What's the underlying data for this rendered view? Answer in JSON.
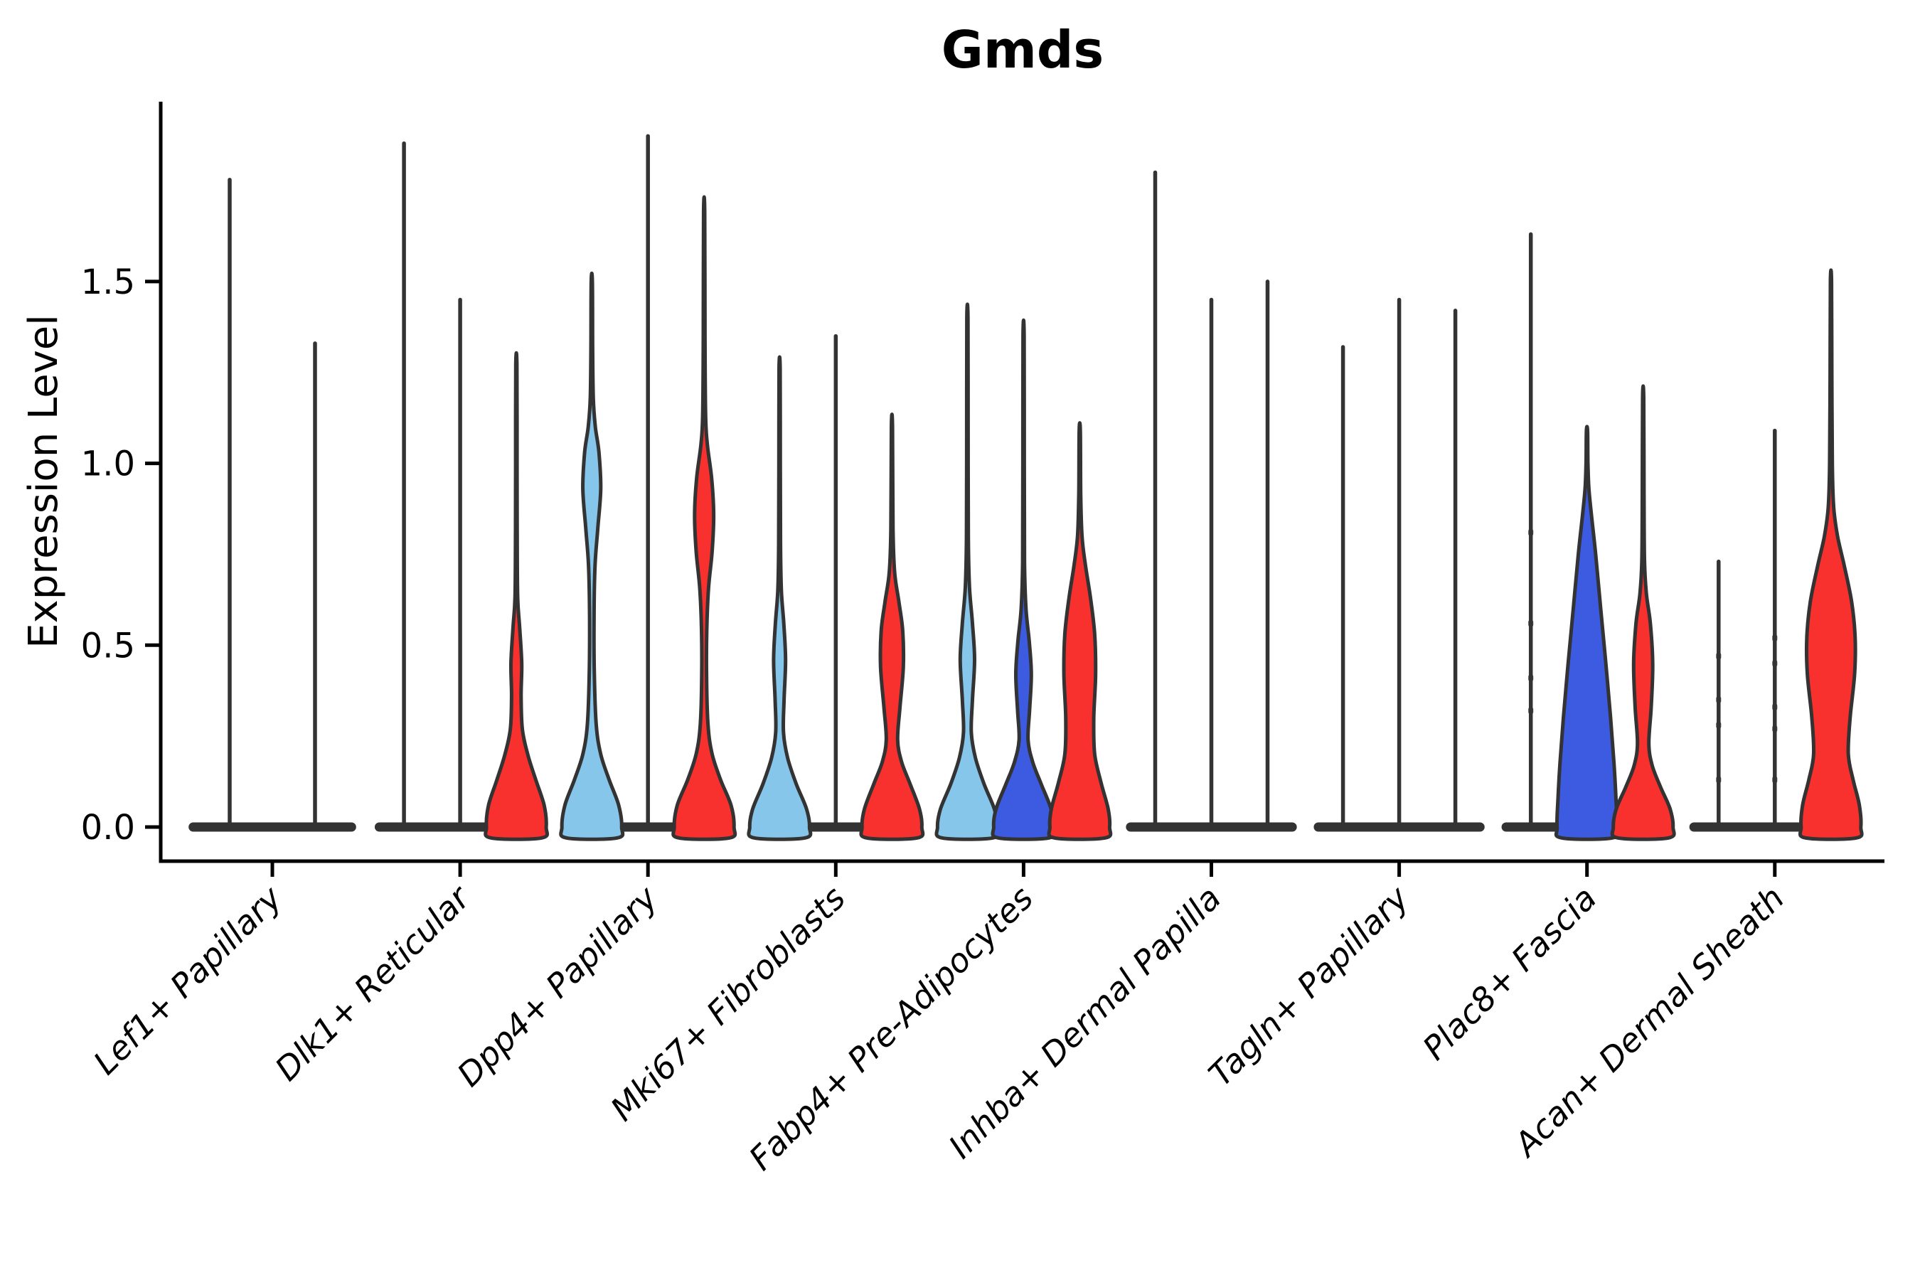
{
  "title": "Gmds",
  "ylabel": "Expression Level",
  "colors": {
    "lightblue": "#87C6EB",
    "darkblue": "#3C5BE0",
    "red": "#F8312F",
    "none": "none",
    "outline": "#333333",
    "axis": "#000000"
  },
  "chart_data": {
    "type": "violin",
    "title": "Gmds",
    "xlabel": "",
    "ylabel": "Expression Level",
    "ylim": [
      -0.09,
      2.0
    ],
    "yticks": [
      0.0,
      0.5,
      1.0,
      1.5
    ],
    "grid": false,
    "legend": null,
    "groups": [
      {
        "label": "Lef1+ Papillary",
        "violins": [
          {
            "color": "none",
            "max": 1.78
          },
          {
            "color": "none",
            "max": 1.33
          }
        ]
      },
      {
        "label": "Dlk1+ Reticular",
        "violins": [
          {
            "color": "none",
            "max": 1.88
          },
          {
            "color": "none",
            "max": 1.45
          },
          {
            "color": "red",
            "max": 1.27,
            "profile": [
              [
                -0.03,
                0.85
              ],
              [
                0,
                1
              ],
              [
                0.06,
                0.93
              ],
              [
                0.13,
                0.65
              ],
              [
                0.2,
                0.38
              ],
              [
                0.27,
                0.2
              ],
              [
                0.36,
                0.16
              ],
              [
                0.45,
                0.18
              ],
              [
                0.55,
                0.11
              ],
              [
                0.63,
                0.045
              ],
              [
                0.8,
                0.028
              ],
              [
                1.0,
                0.024
              ],
              [
                1.27,
                0.02
              ]
            ]
          }
        ]
      },
      {
        "label": "Dpp4+ Papillary",
        "violins": [
          {
            "color": "lightblue",
            "max": 1.5,
            "profile": [
              [
                -0.03,
                0.85
              ],
              [
                0,
                1
              ],
              [
                0.06,
                0.9
              ],
              [
                0.13,
                0.58
              ],
              [
                0.2,
                0.3
              ],
              [
                0.28,
                0.15
              ],
              [
                0.42,
                0.085
              ],
              [
                0.58,
                0.075
              ],
              [
                0.72,
                0.11
              ],
              [
                0.82,
                0.2
              ],
              [
                0.93,
                0.3
              ],
              [
                1.03,
                0.24
              ],
              [
                1.1,
                0.12
              ],
              [
                1.18,
                0.05
              ],
              [
                1.32,
                0.028
              ],
              [
                1.5,
                0.02
              ]
            ]
          },
          {
            "color": "none",
            "max": 1.9
          },
          {
            "color": "red",
            "max": 1.69,
            "profile": [
              [
                -0.03,
                0.85
              ],
              [
                0,
                1
              ],
              [
                0.06,
                0.9
              ],
              [
                0.13,
                0.55
              ],
              [
                0.2,
                0.27
              ],
              [
                0.28,
                0.13
              ],
              [
                0.42,
                0.08
              ],
              [
                0.55,
                0.09
              ],
              [
                0.66,
                0.15
              ],
              [
                0.76,
                0.27
              ],
              [
                0.86,
                0.32
              ],
              [
                0.96,
                0.25
              ],
              [
                1.05,
                0.11
              ],
              [
                1.13,
                0.05
              ],
              [
                1.35,
                0.028
              ],
              [
                1.69,
                0.02
              ]
            ]
          }
        ]
      },
      {
        "label": "Mki67+ Fibroblasts",
        "violins": [
          {
            "color": "lightblue",
            "max": 1.26,
            "profile": [
              [
                -0.03,
                0.85
              ],
              [
                0,
                1
              ],
              [
                0.05,
                0.9
              ],
              [
                0.12,
                0.55
              ],
              [
                0.19,
                0.27
              ],
              [
                0.26,
                0.13
              ],
              [
                0.35,
                0.15
              ],
              [
                0.46,
                0.2
              ],
              [
                0.56,
                0.14
              ],
              [
                0.65,
                0.06
              ],
              [
                0.78,
                0.03
              ],
              [
                1.0,
                0.024
              ],
              [
                1.26,
                0.02
              ]
            ]
          },
          {
            "color": "none",
            "max": 1.35
          },
          {
            "color": "red",
            "max": 1.1,
            "profile": [
              [
                -0.03,
                0.85
              ],
              [
                0,
                1
              ],
              [
                0.05,
                0.92
              ],
              [
                0.12,
                0.6
              ],
              [
                0.18,
                0.32
              ],
              [
                0.24,
                0.19
              ],
              [
                0.33,
                0.27
              ],
              [
                0.44,
                0.38
              ],
              [
                0.54,
                0.36
              ],
              [
                0.62,
                0.23
              ],
              [
                0.7,
                0.09
              ],
              [
                0.82,
                0.035
              ],
              [
                1.1,
                0.02
              ]
            ]
          }
        ]
      },
      {
        "label": "Fabp4+ Pre-Adipocytes",
        "violins": [
          {
            "color": "lightblue",
            "max": 1.4,
            "profile": [
              [
                -0.03,
                0.85
              ],
              [
                0,
                1
              ],
              [
                0.05,
                0.9
              ],
              [
                0.12,
                0.55
              ],
              [
                0.19,
                0.27
              ],
              [
                0.26,
                0.13
              ],
              [
                0.35,
                0.17
              ],
              [
                0.46,
                0.24
              ],
              [
                0.56,
                0.17
              ],
              [
                0.66,
                0.07
              ],
              [
                0.8,
                0.03
              ],
              [
                1.1,
                0.024
              ],
              [
                1.4,
                0.02
              ]
            ]
          },
          {
            "color": "darkblue",
            "max": 1.35,
            "profile": [
              [
                -0.03,
                0.85
              ],
              [
                0,
                1
              ],
              [
                0.05,
                0.92
              ],
              [
                0.12,
                0.58
              ],
              [
                0.18,
                0.3
              ],
              [
                0.24,
                0.15
              ],
              [
                0.32,
                0.2
              ],
              [
                0.42,
                0.26
              ],
              [
                0.51,
                0.19
              ],
              [
                0.6,
                0.08
              ],
              [
                0.73,
                0.032
              ],
              [
                1.0,
                0.024
              ],
              [
                1.35,
                0.02
              ]
            ]
          },
          {
            "color": "red",
            "max": 1.09,
            "profile": [
              [
                -0.03,
                0.85
              ],
              [
                0,
                1
              ],
              [
                0.05,
                0.95
              ],
              [
                0.12,
                0.72
              ],
              [
                0.2,
                0.5
              ],
              [
                0.3,
                0.47
              ],
              [
                0.42,
                0.53
              ],
              [
                0.53,
                0.5
              ],
              [
                0.63,
                0.36
              ],
              [
                0.72,
                0.19
              ],
              [
                0.8,
                0.075
              ],
              [
                0.92,
                0.032
              ],
              [
                1.09,
                0.02
              ]
            ]
          }
        ]
      },
      {
        "label": "Inhba+ Dermal Papilla",
        "violins": [
          {
            "color": "none",
            "max": 1.8
          },
          {
            "color": "none",
            "max": 1.45
          },
          {
            "color": "none",
            "max": 1.5
          }
        ]
      },
      {
        "label": "Tagln+ Papillary",
        "violins": [
          {
            "color": "none",
            "max": 1.32
          },
          {
            "color": "none",
            "max": 1.45
          },
          {
            "color": "none",
            "max": 1.42
          }
        ]
      },
      {
        "label": "Plac8+ Fascia",
        "violins": [
          {
            "color": "none",
            "max": 1.63,
            "dots": [
              0.81,
              0.56,
              0.41,
              0.32
            ]
          },
          {
            "color": "darkblue",
            "max": 1.09,
            "profile": [
              [
                -0.03,
                0.85
              ],
              [
                0,
                1
              ],
              [
                0.08,
                0.97
              ],
              [
                0.18,
                0.9
              ],
              [
                0.3,
                0.79
              ],
              [
                0.45,
                0.63
              ],
              [
                0.6,
                0.46
              ],
              [
                0.75,
                0.29
              ],
              [
                0.85,
                0.16
              ],
              [
                0.93,
                0.065
              ],
              [
                1.0,
                0.032
              ],
              [
                1.09,
                0.02
              ]
            ]
          },
          {
            "color": "red",
            "max": 1.18,
            "profile": [
              [
                -0.03,
                0.85
              ],
              [
                0,
                1
              ],
              [
                0.05,
                0.9
              ],
              [
                0.11,
                0.58
              ],
              [
                0.17,
                0.3
              ],
              [
                0.23,
                0.19
              ],
              [
                0.33,
                0.27
              ],
              [
                0.45,
                0.32
              ],
              [
                0.56,
                0.24
              ],
              [
                0.64,
                0.11
              ],
              [
                0.73,
                0.045
              ],
              [
                0.92,
                0.028
              ],
              [
                1.18,
                0.02
              ]
            ]
          }
        ]
      },
      {
        "label": "Acan+ Dermal Sheath",
        "violins": [
          {
            "color": "none",
            "max": 0.73,
            "dots": [
              0.47,
              0.35,
              0.28,
              0.13
            ]
          },
          {
            "color": "none",
            "max": 1.09,
            "dots": [
              0.52,
              0.45,
              0.33,
              0.27,
              0.13
            ]
          },
          {
            "color": "red",
            "max": 1.5,
            "profile": [
              [
                -0.03,
                0.85
              ],
              [
                0,
                1
              ],
              [
                0.06,
                0.95
              ],
              [
                0.13,
                0.74
              ],
              [
                0.2,
                0.58
              ],
              [
                0.3,
                0.64
              ],
              [
                0.42,
                0.79
              ],
              [
                0.52,
                0.81
              ],
              [
                0.62,
                0.69
              ],
              [
                0.72,
                0.44
              ],
              [
                0.8,
                0.22
              ],
              [
                0.88,
                0.09
              ],
              [
                1.0,
                0.045
              ],
              [
                1.25,
                0.028
              ],
              [
                1.5,
                0.02
              ]
            ]
          }
        ]
      }
    ]
  }
}
